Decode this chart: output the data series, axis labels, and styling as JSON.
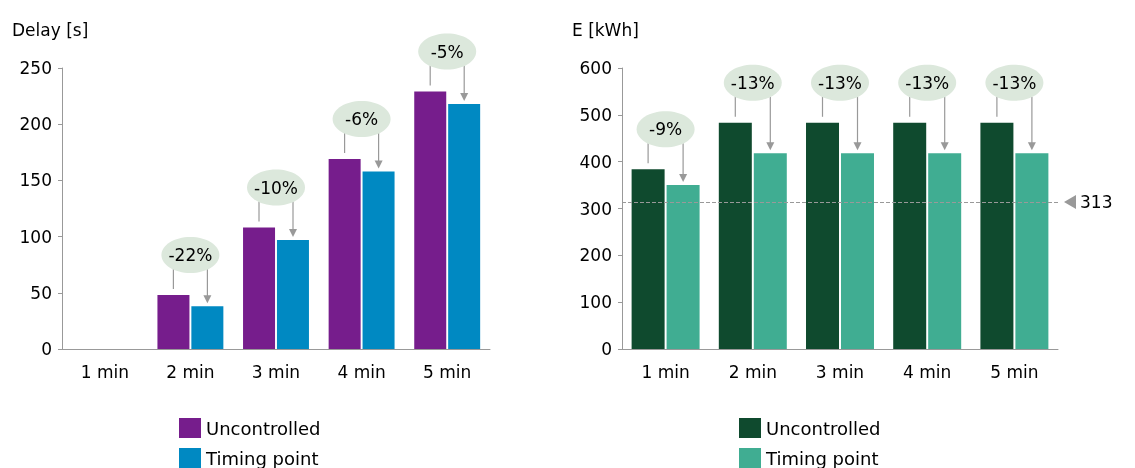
{
  "chart_data": [
    {
      "type": "bar",
      "ylabel": "Delay [s]",
      "categories": [
        "1 min",
        "2 min",
        "3 min",
        "4 min",
        "5 min"
      ],
      "series": [
        {
          "name": "Uncontrolled",
          "color": "#761d8c",
          "values": [
            null,
            48,
            108,
            169,
            229
          ]
        },
        {
          "name": "Timing point",
          "color": "#0089c2",
          "values": [
            null,
            38,
            97,
            158,
            218
          ]
        }
      ],
      "ylim": [
        0,
        250
      ],
      "yticks": [
        0,
        50,
        100,
        150,
        200,
        250
      ],
      "grid": false,
      "legend": "bottom",
      "annotations": [
        {
          "text": "-22%",
          "x": "2 min",
          "y": 48
        },
        {
          "text": "-10%",
          "x": "3 min",
          "y": 108
        },
        {
          "text": "-6%",
          "x": "4 min",
          "y": 169
        },
        {
          "text": "-5%",
          "x": "5 min",
          "y": 229
        }
      ]
    },
    {
      "type": "bar",
      "ylabel": "E [kWh]",
      "categories": [
        "1 min",
        "2 min",
        "3 min",
        "4 min",
        "5 min"
      ],
      "series": [
        {
          "name": "Uncontrolled",
          "color": "#0f4a2e",
          "values": [
            384,
            483,
            483,
            483,
            483
          ]
        },
        {
          "name": "Timing point",
          "color": "#40ad92",
          "values": [
            350,
            418,
            418,
            418,
            418
          ]
        }
      ],
      "ylim": [
        0,
        600
      ],
      "yticks": [
        0,
        100,
        200,
        300,
        400,
        500,
        600
      ],
      "grid": false,
      "legend": "bottom",
      "ref_lines": [
        {
          "axis": "y",
          "value": 313,
          "label": "313",
          "color": "#999999",
          "line_style": "dashed"
        }
      ],
      "annotations": [
        {
          "text": "-9%",
          "x": "1 min",
          "y": 384
        },
        {
          "text": "-13%",
          "x": "2 min",
          "y": 483
        },
        {
          "text": "-13%",
          "x": "3 min",
          "y": 483
        },
        {
          "text": "-13%",
          "x": "4 min",
          "y": 483
        },
        {
          "text": "-13%",
          "x": "5 min",
          "y": 483
        }
      ]
    }
  ]
}
